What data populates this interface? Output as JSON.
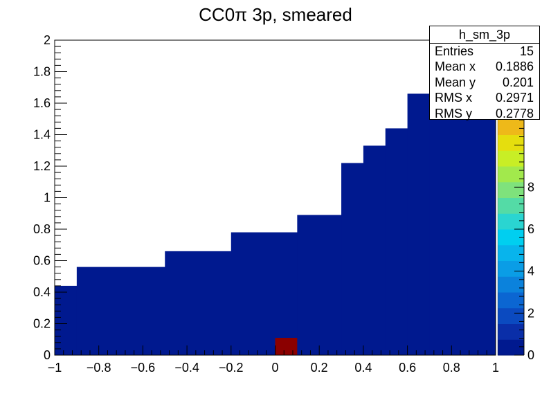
{
  "chart_data": {
    "type": "heatmap",
    "title": "CC0π 3p, smeared",
    "xlabel": "",
    "ylabel": "",
    "xlim": [
      -1,
      1
    ],
    "ylim": [
      0,
      2
    ],
    "x_ticks": [
      "−1",
      "−0.8",
      "−0.6",
      "−0.4",
      "−0.2",
      "0",
      "0.2",
      "0.4",
      "0.6",
      "0.8",
      "1"
    ],
    "y_ticks": [
      "0",
      "0.2",
      "0.4",
      "0.6",
      "0.8",
      "1",
      "1.2",
      "1.4",
      "1.6",
      "1.8",
      "2"
    ],
    "bin_edges_x": [
      -1.0,
      -0.9,
      -0.5,
      -0.2,
      0.1,
      0.3,
      0.4,
      0.5,
      0.6,
      0.7,
      1.0
    ],
    "boundary_y": [
      0.44,
      0.56,
      0.66,
      0.78,
      0.89,
      1.22,
      1.33,
      1.44,
      1.66,
      1.66
    ],
    "filled_content": 0,
    "hot_bins": [
      {
        "x0": 0.0,
        "x1": 0.1,
        "y0": 0.0,
        "y1": 0.11,
        "content": 15
      }
    ],
    "colorbar": {
      "min": 0,
      "max": 15,
      "ticks": [
        "0",
        "2",
        "4",
        "6",
        "8"
      ],
      "palette": [
        "#00198f",
        "#0a2ea8",
        "#0b4ac0",
        "#0b66d2",
        "#0b82dc",
        "#0a9de6",
        "#08b4ec",
        "#00cff0",
        "#2ad5d1",
        "#54dba6",
        "#7fe27c",
        "#a2e94c",
        "#c8ee26",
        "#e5de0e",
        "#eeb919",
        "#f1941b",
        "#e86c1e",
        "#d8431d",
        "#bd2214",
        "#8b0000"
      ]
    },
    "stats_box": {
      "name": "h_sm_3p",
      "rows": [
        {
          "label": "Entries",
          "value": "15"
        },
        {
          "label": "Mean x",
          "value": "0.1886"
        },
        {
          "label": "Mean y",
          "value": "0.201"
        },
        {
          "label": "RMS x",
          "value": "0.2971"
        },
        {
          "label": "RMS y",
          "value": "0.2778"
        }
      ]
    },
    "colors": {
      "fill": "#00198f",
      "hot": "#8b0000",
      "frame": "#000000",
      "background": "#ffffff"
    }
  }
}
